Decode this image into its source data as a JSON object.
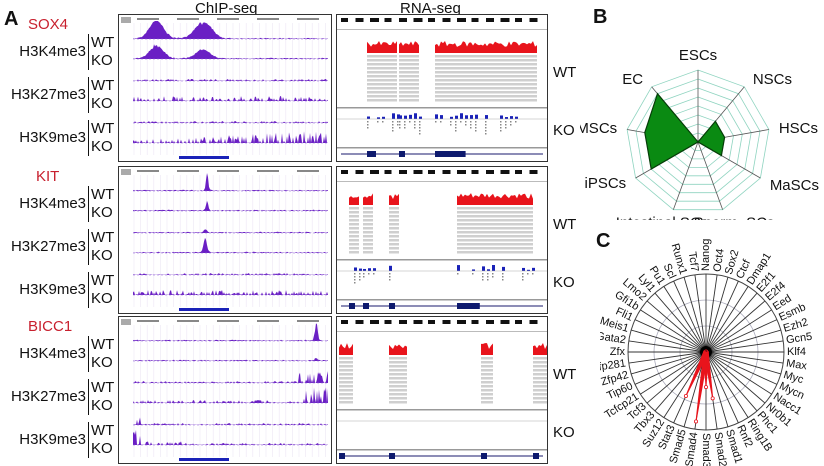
{
  "figure": {
    "panel_a": {
      "letter": "A",
      "col_chip": "ChIP-seq",
      "col_rna": "RNA-seq",
      "genes": [
        {
          "name": "SOX4"
        },
        {
          "name": "KIT"
        },
        {
          "name": "BICC1"
        }
      ],
      "marks": [
        "H3K4me3",
        "H3K27me3",
        "H3K9me3"
      ],
      "wt": "WT",
      "ko": "KO"
    },
    "panel_b": {
      "letter": "B"
    },
    "panel_c": {
      "letter": "C"
    },
    "colors": {
      "gene_label": "#c8202e",
      "chip_signal": "#6a1fc4",
      "rna_wt": "#e8141c",
      "rna_ko": "#1a22b8",
      "radar_fill": "#0a8a12",
      "radar_grid": "#8fd4c0",
      "tf_spike": "#e8141c"
    }
  },
  "chart_data": [
    {
      "type": "radar",
      "panel": "B",
      "axes": [
        "ESCs",
        "NSCs",
        "HSCs",
        "MaSCs",
        "Sperm. SCs",
        "Intestinal SCs",
        "iPSCs",
        "MSCs",
        "EC"
      ],
      "values": [
        0,
        3,
        3,
        3,
        0,
        0,
        6,
        6,
        7
      ],
      "range": [
        0,
        8
      ],
      "rings": 8,
      "grid": true,
      "title": ""
    },
    {
      "type": "radar",
      "panel": "C",
      "axes": [
        "Nanog",
        "Oct4",
        "Sox2",
        "Ctcf",
        "Dmap1",
        "E2f1",
        "E2f4",
        "Eed",
        "Esmb",
        "Ezh2",
        "Gcn5",
        "Klf4",
        "Max",
        "Myc",
        "Mycn",
        "Nacc1",
        "Nr0b1",
        "Phc1",
        "Ring1B",
        "Rnf2",
        "Smad1",
        "Smad2",
        "Smad3",
        "Smad4",
        "Smad5",
        "Stat3",
        "Suz12",
        "Tbx3",
        "Tcf3",
        "Tcfcp21",
        "Tip60",
        "Zfp42",
        "Zfp281",
        "Zfx",
        "Gata2",
        "Meis1",
        "Fli1",
        "Gfi1b",
        "Lmo2",
        "Lyl1",
        "Pu1",
        "Scl",
        "Runx1",
        "Tcf7"
      ],
      "values": {
        "Smad2": 0.6,
        "Smad3": 0.45,
        "Smad4": 0.9,
        "Stat3": 0.62
      },
      "range": [
        0,
        1
      ],
      "rings": 3,
      "grid": true,
      "title": ""
    }
  ]
}
